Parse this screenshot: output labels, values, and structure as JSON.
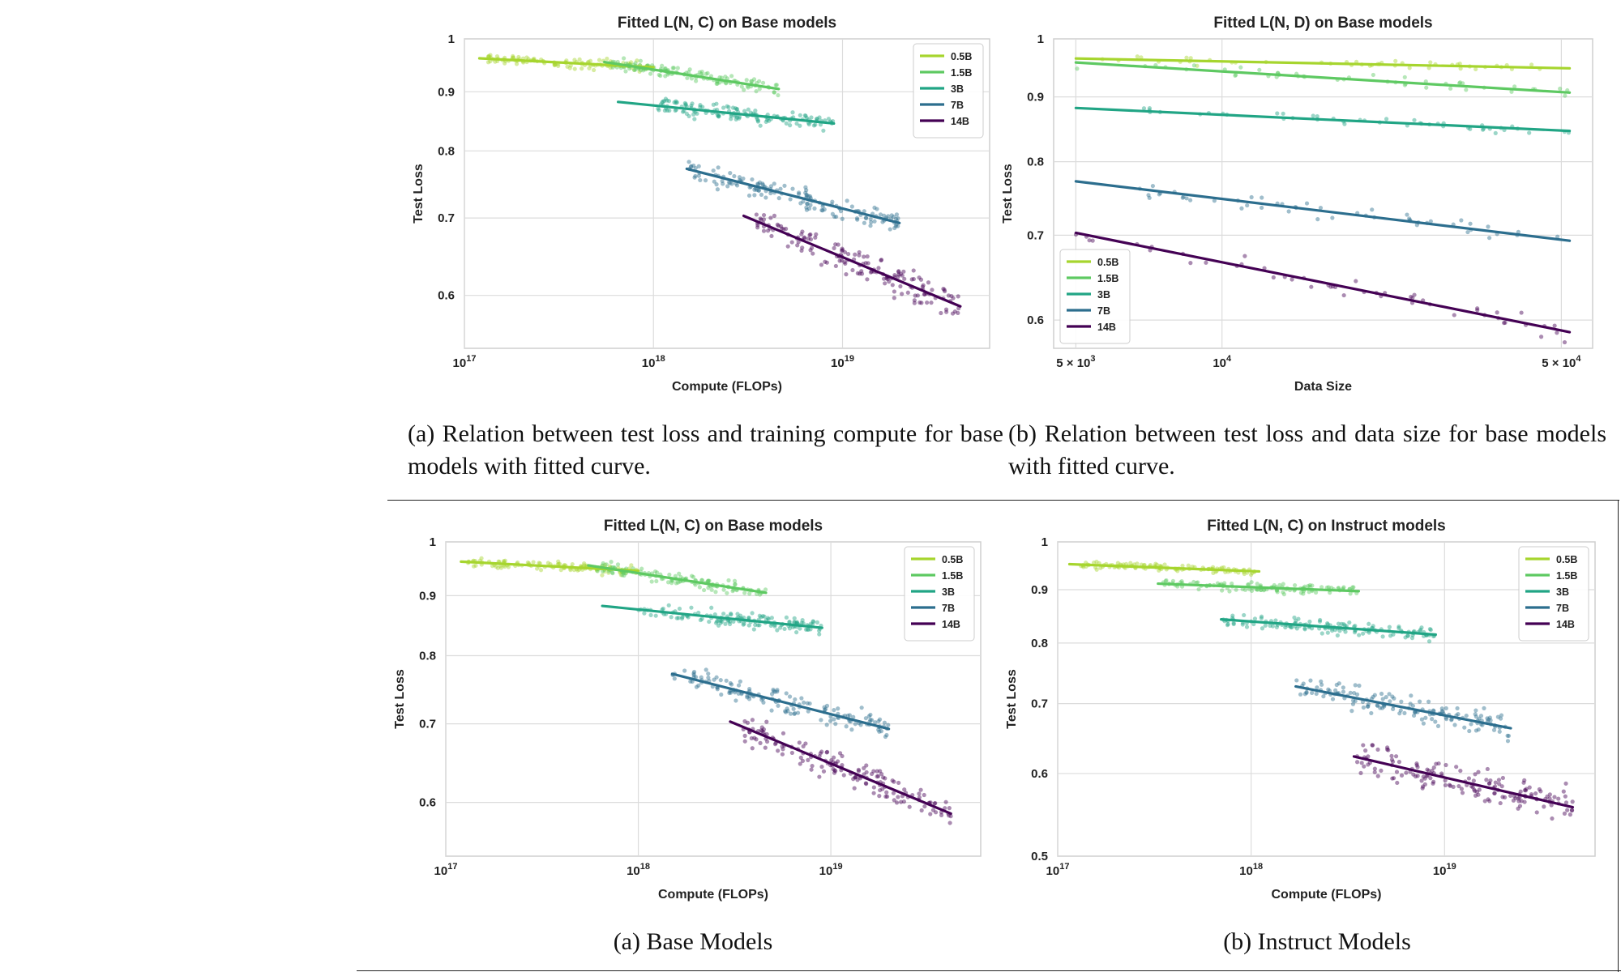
{
  "captions": {
    "top_a": "(a) Relation between test loss and training compute for base models with fitted curve.",
    "top_b": "(b) Relation between test loss and data size for base models with fitted curve.",
    "bottom_a": "(a) Base Models",
    "bottom_b": "(b) Instruct Models"
  },
  "colors": {
    "0.5B": "#a6d52e",
    "1.5B": "#5ec962",
    "3B": "#21a585",
    "7B": "#2c6e8e",
    "14B": "#440154"
  },
  "chart_data": [
    {
      "id": "chart-top-a",
      "type": "scatter",
      "title": "Fitted L(N, C) on Base models",
      "xlabel": "Compute (FLOPs)",
      "ylabel": "Test Loss",
      "xscale": "log",
      "yscale": "log",
      "xlim": [
        1e+17,
        6e+19
      ],
      "ylim": [
        0.54,
        1.0
      ],
      "xticks": [
        {
          "v": 1e+17,
          "base": "10",
          "exp": "17"
        },
        {
          "v": 1e+18,
          "base": "10",
          "exp": "18"
        },
        {
          "v": 1e+19,
          "base": "10",
          "exp": "19"
        }
      ],
      "yticks": [
        {
          "v": 0.6,
          "label": "0.6"
        },
        {
          "v": 0.7,
          "label": "0.7"
        },
        {
          "v": 0.8,
          "label": "0.8"
        },
        {
          "v": 0.9,
          "label": "0.9"
        },
        {
          "v": 1.0,
          "label": "1"
        }
      ],
      "grid": true,
      "legend": "top-right",
      "series": [
        {
          "name": "0.5B",
          "scatter": {
            "x_range": [
              1.3e+17,
              1e+18
            ],
            "n": 110,
            "y_noise": 0.008
          },
          "fit": {
            "x": [
              1.2e+17,
              1e+18
            ],
            "y": [
              0.962,
              0.945
            ]
          }
        },
        {
          "name": "1.5B",
          "scatter": {
            "x_range": [
              6e+17,
              4.6e+18
            ],
            "n": 130,
            "y_noise": 0.01
          },
          "fit": {
            "x": [
              5.5e+17,
              4.6e+18
            ],
            "y": [
              0.955,
              0.905
            ]
          }
        },
        {
          "name": "3B",
          "scatter": {
            "x_range": [
              1e+18,
              9e+18
            ],
            "n": 140,
            "y_noise": 0.012
          },
          "fit": {
            "x": [
              6.5e+17,
              9e+18
            ],
            "y": [
              0.882,
              0.845
            ]
          }
        },
        {
          "name": "7B",
          "scatter": {
            "x_range": [
              1.5e+18,
              2e+19
            ],
            "n": 150,
            "y_noise": 0.015
          },
          "fit": {
            "x": [
              1.5e+18,
              2e+19
            ],
            "y": [
              0.772,
              0.693
            ]
          }
        },
        {
          "name": "14B",
          "scatter": {
            "x_range": [
              3.5e+18,
              4.2e+19
            ],
            "n": 160,
            "y_noise": 0.018
          },
          "fit": {
            "x": [
              3e+18,
              4.2e+19
            ],
            "y": [
              0.703,
              0.587
            ]
          }
        }
      ]
    },
    {
      "id": "chart-top-b",
      "type": "scatter",
      "title": "Fitted L(N, D) on Base models",
      "xlabel": "Data Size",
      "ylabel": "Test Loss",
      "xscale": "log",
      "yscale": "log",
      "xlim": [
        4500,
        58000
      ],
      "ylim": [
        0.57,
        1.0
      ],
      "xticks": [
        {
          "v": 5000,
          "base": "5 × 10",
          "exp": "3"
        },
        {
          "v": 10000,
          "base": "10",
          "exp": "4"
        },
        {
          "v": 50000,
          "base": "5 × 10",
          "exp": "4"
        }
      ],
      "yticks": [
        {
          "v": 0.6,
          "label": "0.6"
        },
        {
          "v": 0.7,
          "label": "0.7"
        },
        {
          "v": 0.8,
          "label": "0.8"
        },
        {
          "v": 0.9,
          "label": "0.9"
        },
        {
          "v": 1.0,
          "label": "1"
        }
      ],
      "grid": true,
      "legend": "bottom-left",
      "series": [
        {
          "name": "0.5B",
          "scatter": {
            "x_range": [
              5000,
              52000
            ],
            "n": 45,
            "y_noise": 0.006
          },
          "fit": {
            "x": [
              5000,
              52000
            ],
            "y": [
              0.965,
              0.948
            ]
          }
        },
        {
          "name": "1.5B",
          "scatter": {
            "x_range": [
              5000,
              52000
            ],
            "n": 45,
            "y_noise": 0.008
          },
          "fit": {
            "x": [
              5000,
              52000
            ],
            "y": [
              0.958,
              0.907
            ]
          }
        },
        {
          "name": "3B",
          "scatter": {
            "x_range": [
              5000,
              52000
            ],
            "n": 45,
            "y_noise": 0.008
          },
          "fit": {
            "x": [
              5000,
              52000
            ],
            "y": [
              0.882,
              0.846
            ]
          }
        },
        {
          "name": "7B",
          "scatter": {
            "x_range": [
              5000,
              52000
            ],
            "n": 50,
            "y_noise": 0.01
          },
          "fit": {
            "x": [
              5000,
              52000
            ],
            "y": [
              0.772,
              0.693
            ]
          }
        },
        {
          "name": "14B",
          "scatter": {
            "x_range": [
              5000,
              52000
            ],
            "n": 50,
            "y_noise": 0.01
          },
          "fit": {
            "x": [
              5000,
              52000
            ],
            "y": [
              0.703,
              0.587
            ]
          }
        }
      ]
    },
    {
      "id": "chart-bottom-a",
      "type": "scatter",
      "title": "Fitted L(N, C) on Base models",
      "xlabel": "Compute (FLOPs)",
      "ylabel": "Test Loss",
      "xscale": "log",
      "yscale": "log",
      "xlim": [
        1e+17,
        6e+19
      ],
      "ylim": [
        0.54,
        1.0
      ],
      "xticks": [
        {
          "v": 1e+17,
          "base": "10",
          "exp": "17"
        },
        {
          "v": 1e+18,
          "base": "10",
          "exp": "18"
        },
        {
          "v": 1e+19,
          "base": "10",
          "exp": "19"
        }
      ],
      "yticks": [
        {
          "v": 0.6,
          "label": "0.6"
        },
        {
          "v": 0.7,
          "label": "0.7"
        },
        {
          "v": 0.8,
          "label": "0.8"
        },
        {
          "v": 0.9,
          "label": "0.9"
        },
        {
          "v": 1.0,
          "label": "1"
        }
      ],
      "grid": true,
      "legend": "top-right",
      "series": [
        {
          "name": "0.5B",
          "scatter": {
            "x_range": [
              1.3e+17,
              1e+18
            ],
            "n": 110,
            "y_noise": 0.008
          },
          "fit": {
            "x": [
              1.2e+17,
              1e+18
            ],
            "y": [
              0.962,
              0.945
            ]
          }
        },
        {
          "name": "1.5B",
          "scatter": {
            "x_range": [
              6e+17,
              4.6e+18
            ],
            "n": 130,
            "y_noise": 0.01
          },
          "fit": {
            "x": [
              5.5e+17,
              4.6e+18
            ],
            "y": [
              0.955,
              0.905
            ]
          }
        },
        {
          "name": "3B",
          "scatter": {
            "x_range": [
              1e+18,
              9e+18
            ],
            "n": 140,
            "y_noise": 0.012
          },
          "fit": {
            "x": [
              6.5e+17,
              9e+18
            ],
            "y": [
              0.882,
              0.845
            ]
          }
        },
        {
          "name": "7B",
          "scatter": {
            "x_range": [
              1.5e+18,
              2e+19
            ],
            "n": 150,
            "y_noise": 0.015
          },
          "fit": {
            "x": [
              1.5e+18,
              2e+19
            ],
            "y": [
              0.772,
              0.693
            ]
          }
        },
        {
          "name": "14B",
          "scatter": {
            "x_range": [
              3.5e+18,
              4.2e+19
            ],
            "n": 160,
            "y_noise": 0.018
          },
          "fit": {
            "x": [
              3e+18,
              4.2e+19
            ],
            "y": [
              0.703,
              0.587
            ]
          }
        }
      ]
    },
    {
      "id": "chart-bottom-b",
      "type": "scatter",
      "title": "Fitted L(N, C) on Instruct models",
      "xlabel": "Compute (FLOPs)",
      "ylabel": "Test Loss",
      "xscale": "log",
      "yscale": "log",
      "xlim": [
        1e+17,
        6e+19
      ],
      "ylim": [
        0.5,
        1.0
      ],
      "xticks": [
        {
          "v": 1e+17,
          "base": "10",
          "exp": "17"
        },
        {
          "v": 1e+18,
          "base": "10",
          "exp": "18"
        },
        {
          "v": 1e+19,
          "base": "10",
          "exp": "19"
        }
      ],
      "yticks": [
        {
          "v": 0.5,
          "label": "0.5"
        },
        {
          "v": 0.6,
          "label": "0.6"
        },
        {
          "v": 0.7,
          "label": "0.7"
        },
        {
          "v": 0.8,
          "label": "0.8"
        },
        {
          "v": 0.9,
          "label": "0.9"
        },
        {
          "v": 1.0,
          "label": "1"
        }
      ],
      "grid": true,
      "legend": "top-right",
      "series": [
        {
          "name": "0.5B",
          "scatter": {
            "x_range": [
              1.3e+17,
              1.1e+18
            ],
            "n": 110,
            "y_noise": 0.007
          },
          "fit": {
            "x": [
              1.15e+17,
              1.1e+18
            ],
            "y": [
              0.952,
              0.937
            ]
          }
        },
        {
          "name": "1.5B",
          "scatter": {
            "x_range": [
              3.5e+17,
              3.6e+18
            ],
            "n": 120,
            "y_noise": 0.009
          },
          "fit": {
            "x": [
              3.3e+17,
              3.6e+18
            ],
            "y": [
              0.912,
              0.897
            ]
          }
        },
        {
          "name": "3B",
          "scatter": {
            "x_range": [
              7e+17,
              9e+18
            ],
            "n": 140,
            "y_noise": 0.011
          },
          "fit": {
            "x": [
              7e+17,
              9e+18
            ],
            "y": [
              0.843,
              0.815
            ]
          }
        },
        {
          "name": "7B",
          "scatter": {
            "x_range": [
              1.7e+18,
              2.2e+19
            ],
            "n": 150,
            "y_noise": 0.017
          },
          "fit": {
            "x": [
              1.7e+18,
              2.2e+19
            ],
            "y": [
              0.727,
              0.663
            ]
          }
        },
        {
          "name": "14B",
          "scatter": {
            "x_range": [
              3.5e+18,
              4.6e+19
            ],
            "n": 160,
            "y_noise": 0.02
          },
          "fit": {
            "x": [
              3.4e+18,
              4.6e+19
            ],
            "y": [
              0.623,
              0.557
            ]
          }
        }
      ]
    }
  ]
}
